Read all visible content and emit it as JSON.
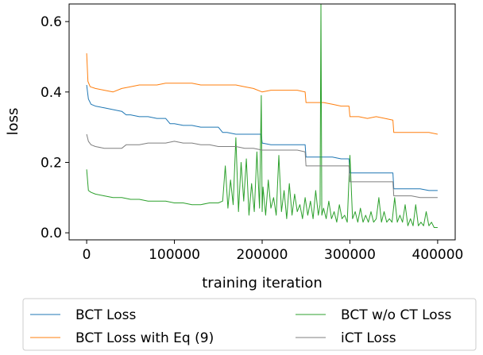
{
  "chart_data": {
    "type": "line",
    "title": "",
    "xlabel": "training iteration",
    "ylabel": "loss",
    "xlim": [
      -20000,
      420000
    ],
    "ylim": [
      -0.02,
      0.65
    ],
    "xticks": [
      0,
      100000,
      200000,
      300000,
      400000
    ],
    "xtick_labels": [
      "0",
      "100000",
      "200000",
      "300000",
      "400000"
    ],
    "yticks": [
      0.0,
      0.2,
      0.4,
      0.6
    ],
    "ytick_labels": [
      "0.0",
      "0.2",
      "0.4",
      "0.6"
    ],
    "grid": false,
    "legend": {
      "placement": "below",
      "columns": 2
    },
    "series": [
      {
        "name": "BCT Loss",
        "color": "#1f77b4",
        "x": [
          0,
          2000,
          5000,
          10000,
          20000,
          30000,
          40000,
          45000,
          50000,
          60000,
          70000,
          80000,
          90000,
          95000,
          100000,
          110000,
          120000,
          130000,
          140000,
          150000,
          155000,
          160000,
          170000,
          180000,
          190000,
          199000,
          200000,
          210000,
          220000,
          230000,
          240000,
          249000,
          250000,
          260000,
          270000,
          280000,
          290000,
          299000,
          300000,
          310000,
          320000,
          330000,
          340000,
          349000,
          350000,
          360000,
          370000,
          380000,
          390000,
          400000
        ],
        "y": [
          0.42,
          0.38,
          0.365,
          0.36,
          0.355,
          0.35,
          0.345,
          0.335,
          0.335,
          0.33,
          0.33,
          0.325,
          0.325,
          0.31,
          0.31,
          0.305,
          0.305,
          0.3,
          0.3,
          0.3,
          0.285,
          0.285,
          0.28,
          0.28,
          0.28,
          0.28,
          0.255,
          0.25,
          0.25,
          0.25,
          0.25,
          0.25,
          0.215,
          0.215,
          0.215,
          0.215,
          0.21,
          0.21,
          0.17,
          0.17,
          0.17,
          0.17,
          0.17,
          0.17,
          0.125,
          0.125,
          0.125,
          0.125,
          0.12,
          0.12
        ]
      },
      {
        "name": "BCT Loss with Eq (9)",
        "color": "#ff7f0e",
        "x": [
          0,
          1500,
          4000,
          10000,
          20000,
          30000,
          40000,
          50000,
          60000,
          70000,
          80000,
          90000,
          100000,
          110000,
          120000,
          130000,
          140000,
          150000,
          160000,
          170000,
          180000,
          190000,
          200000,
          210000,
          220000,
          230000,
          240000,
          249000,
          250000,
          260000,
          270000,
          280000,
          290000,
          299000,
          300000,
          310000,
          320000,
          330000,
          340000,
          349000,
          350000,
          360000,
          370000,
          380000,
          390000,
          400000
        ],
        "y": [
          0.51,
          0.43,
          0.415,
          0.41,
          0.405,
          0.4,
          0.41,
          0.415,
          0.42,
          0.42,
          0.42,
          0.425,
          0.425,
          0.425,
          0.425,
          0.42,
          0.42,
          0.42,
          0.42,
          0.42,
          0.415,
          0.41,
          0.4,
          0.405,
          0.405,
          0.405,
          0.405,
          0.4,
          0.37,
          0.37,
          0.37,
          0.365,
          0.36,
          0.36,
          0.33,
          0.33,
          0.325,
          0.33,
          0.325,
          0.32,
          0.285,
          0.285,
          0.285,
          0.285,
          0.285,
          0.28
        ]
      },
      {
        "name": "BCT w/o CT Loss",
        "color": "#2ca02c",
        "x": [
          0,
          2000,
          5000,
          10000,
          20000,
          30000,
          40000,
          50000,
          60000,
          70000,
          80000,
          90000,
          100000,
          110000,
          120000,
          130000,
          140000,
          150000,
          155000,
          158000,
          161000,
          164000,
          167000,
          170000,
          173000,
          176000,
          179000,
          182000,
          185000,
          188000,
          191000,
          194000,
          197000,
          199000,
          200000,
          201000,
          204000,
          207000,
          210000,
          213000,
          216000,
          219000,
          222000,
          225000,
          228000,
          231000,
          234000,
          237000,
          240000,
          243000,
          246000,
          249000,
          252000,
          255000,
          258000,
          261000,
          264000,
          266000,
          267000,
          268000,
          270000,
          273000,
          276000,
          279000,
          282000,
          285000,
          288000,
          291000,
          294000,
          297000,
          300000,
          303000,
          306000,
          309000,
          312000,
          315000,
          318000,
          321000,
          324000,
          327000,
          330000,
          333000,
          336000,
          339000,
          342000,
          345000,
          348000,
          351000,
          354000,
          357000,
          360000,
          363000,
          366000,
          369000,
          372000,
          375000,
          378000,
          381000,
          384000,
          387000,
          390000,
          393000,
          396000,
          400000
        ],
        "y": [
          0.18,
          0.12,
          0.115,
          0.11,
          0.105,
          0.1,
          0.1,
          0.095,
          0.095,
          0.09,
          0.09,
          0.09,
          0.085,
          0.085,
          0.08,
          0.08,
          0.085,
          0.085,
          0.09,
          0.19,
          0.07,
          0.15,
          0.08,
          0.27,
          0.06,
          0.2,
          0.09,
          0.21,
          0.05,
          0.14,
          0.06,
          0.23,
          0.07,
          0.39,
          0.06,
          0.13,
          0.05,
          0.15,
          0.07,
          0.1,
          0.05,
          0.22,
          0.06,
          0.12,
          0.04,
          0.14,
          0.05,
          0.11,
          0.06,
          0.08,
          0.04,
          0.1,
          0.05,
          0.09,
          0.04,
          0.12,
          0.05,
          0.08,
          0.65,
          0.05,
          0.07,
          0.04,
          0.09,
          0.04,
          0.06,
          0.03,
          0.08,
          0.04,
          0.05,
          0.03,
          0.22,
          0.04,
          0.06,
          0.03,
          0.07,
          0.03,
          0.05,
          0.03,
          0.06,
          0.03,
          0.04,
          0.1,
          0.03,
          0.06,
          0.03,
          0.04,
          0.03,
          0.1,
          0.03,
          0.05,
          0.03,
          0.08,
          0.02,
          0.04,
          0.02,
          0.08,
          0.02,
          0.03,
          0.02,
          0.06,
          0.02,
          0.03,
          0.015,
          0.015
        ]
      },
      {
        "name": "iCT Loss",
        "color": "#7f7f7f",
        "x": [
          0,
          2000,
          5000,
          10000,
          20000,
          30000,
          40000,
          45000,
          50000,
          60000,
          70000,
          80000,
          90000,
          100000,
          110000,
          120000,
          130000,
          140000,
          150000,
          160000,
          170000,
          180000,
          190000,
          200000,
          210000,
          220000,
          230000,
          240000,
          249000,
          250000,
          260000,
          270000,
          280000,
          290000,
          299000,
          300000,
          310000,
          320000,
          330000,
          340000,
          349000,
          350000,
          360000,
          370000,
          380000,
          390000,
          400000
        ],
        "y": [
          0.28,
          0.26,
          0.25,
          0.245,
          0.24,
          0.24,
          0.24,
          0.25,
          0.25,
          0.25,
          0.255,
          0.255,
          0.255,
          0.26,
          0.255,
          0.255,
          0.25,
          0.25,
          0.245,
          0.245,
          0.245,
          0.24,
          0.24,
          0.235,
          0.235,
          0.235,
          0.235,
          0.235,
          0.23,
          0.19,
          0.19,
          0.19,
          0.19,
          0.19,
          0.19,
          0.145,
          0.145,
          0.145,
          0.145,
          0.145,
          0.145,
          0.105,
          0.105,
          0.105,
          0.1,
          0.1,
          0.1
        ]
      }
    ]
  }
}
